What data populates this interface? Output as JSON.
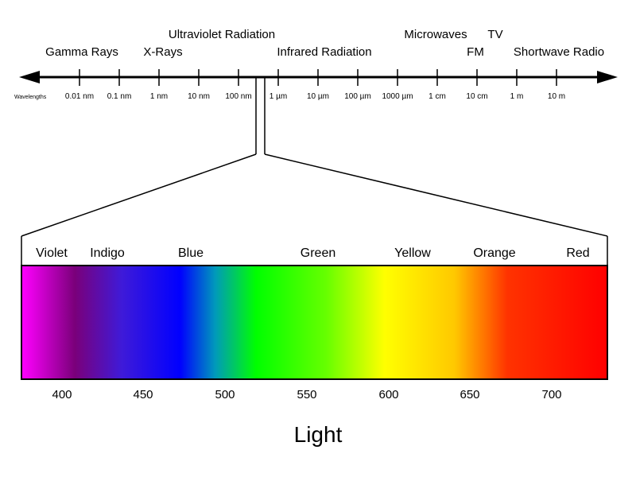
{
  "spectrum": {
    "wavelengths_label": "Wavelengths",
    "regions": [
      {
        "key": "gamma",
        "label": "Gamma Rays"
      },
      {
        "key": "xray",
        "label": "X-Rays"
      },
      {
        "key": "uv",
        "label": "Ultraviolet Radiation"
      },
      {
        "key": "ir",
        "label": "Infrared Radiation"
      },
      {
        "key": "micro",
        "label": "Microwaves"
      },
      {
        "key": "tv",
        "label": "TV"
      },
      {
        "key": "fm",
        "label": "FM"
      },
      {
        "key": "sw",
        "label": "Shortwave Radio"
      }
    ],
    "ticks": [
      "0.01 nm",
      "0.1 nm",
      "1 nm",
      "10 nm",
      "100 nm",
      "1 µm",
      "10 µm",
      "100 µm",
      "1000 µm",
      "1 cm",
      "10 cm",
      "1 m",
      "10 m"
    ]
  },
  "light": {
    "caption": "Light",
    "colors": [
      "Violet",
      "Indigo",
      "Blue",
      "Green",
      "Yellow",
      "Orange",
      "Red"
    ],
    "wavelength_ticks": [
      "400",
      "450",
      "500",
      "550",
      "600",
      "650",
      "700"
    ],
    "gradient_stops": [
      {
        "color": "#ff00ff",
        "pos": 0
      },
      {
        "color": "#7a007a",
        "pos": 9
      },
      {
        "color": "#3f1ad8",
        "pos": 17
      },
      {
        "color": "#0000ff",
        "pos": 27
      },
      {
        "color": "#0099bb",
        "pos": 33
      },
      {
        "color": "#00ff00",
        "pos": 40
      },
      {
        "color": "#66ff00",
        "pos": 52
      },
      {
        "color": "#ffff00",
        "pos": 62
      },
      {
        "color": "#ffc800",
        "pos": 74
      },
      {
        "color": "#ff3300",
        "pos": 83
      },
      {
        "color": "#ff0000",
        "pos": 100
      }
    ]
  }
}
